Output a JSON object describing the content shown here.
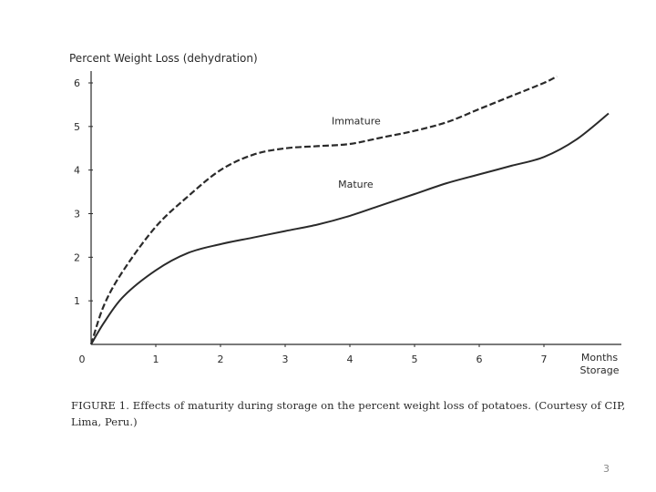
{
  "chart_data": {
    "type": "line",
    "ylabel": "Percent Weight Loss (dehydration)",
    "xlabel": [
      "Months",
      "Storage"
    ],
    "xlim": [
      0,
      8
    ],
    "ylim": [
      0,
      6.5
    ],
    "x_ticks": [
      0,
      1,
      2,
      3,
      4,
      5,
      6,
      7
    ],
    "y_ticks": [
      1,
      2,
      3,
      4,
      5,
      6
    ],
    "grid": false,
    "series": [
      {
        "name": "Immature",
        "style": "dashed",
        "x": [
          0,
          0.2,
          0.5,
          1.0,
          1.5,
          2.0,
          2.5,
          3.0,
          3.5,
          4.0,
          4.5,
          5.0,
          5.5,
          6.0,
          6.5,
          7.0,
          7.2
        ],
        "y": [
          0,
          0.9,
          1.7,
          2.7,
          3.4,
          4.0,
          4.35,
          4.5,
          4.55,
          4.6,
          4.75,
          4.9,
          5.1,
          5.4,
          5.7,
          6.0,
          6.15
        ]
      },
      {
        "name": "Mature",
        "style": "solid",
        "x": [
          0,
          0.2,
          0.5,
          1.0,
          1.5,
          2.0,
          2.5,
          3.0,
          3.5,
          4.0,
          4.5,
          5.0,
          5.5,
          6.0,
          6.5,
          7.0,
          7.5,
          8.0
        ],
        "y": [
          0,
          0.5,
          1.1,
          1.7,
          2.1,
          2.3,
          2.45,
          2.6,
          2.75,
          2.95,
          3.2,
          3.45,
          3.7,
          3.9,
          4.1,
          4.3,
          4.7,
          5.3
        ]
      }
    ]
  },
  "caption": "FIGURE 1.   Effects of maturity during storage on the percent weight loss of potatoes. (Courtesy of CIP, Lima, Peru.)",
  "page_number": "3"
}
